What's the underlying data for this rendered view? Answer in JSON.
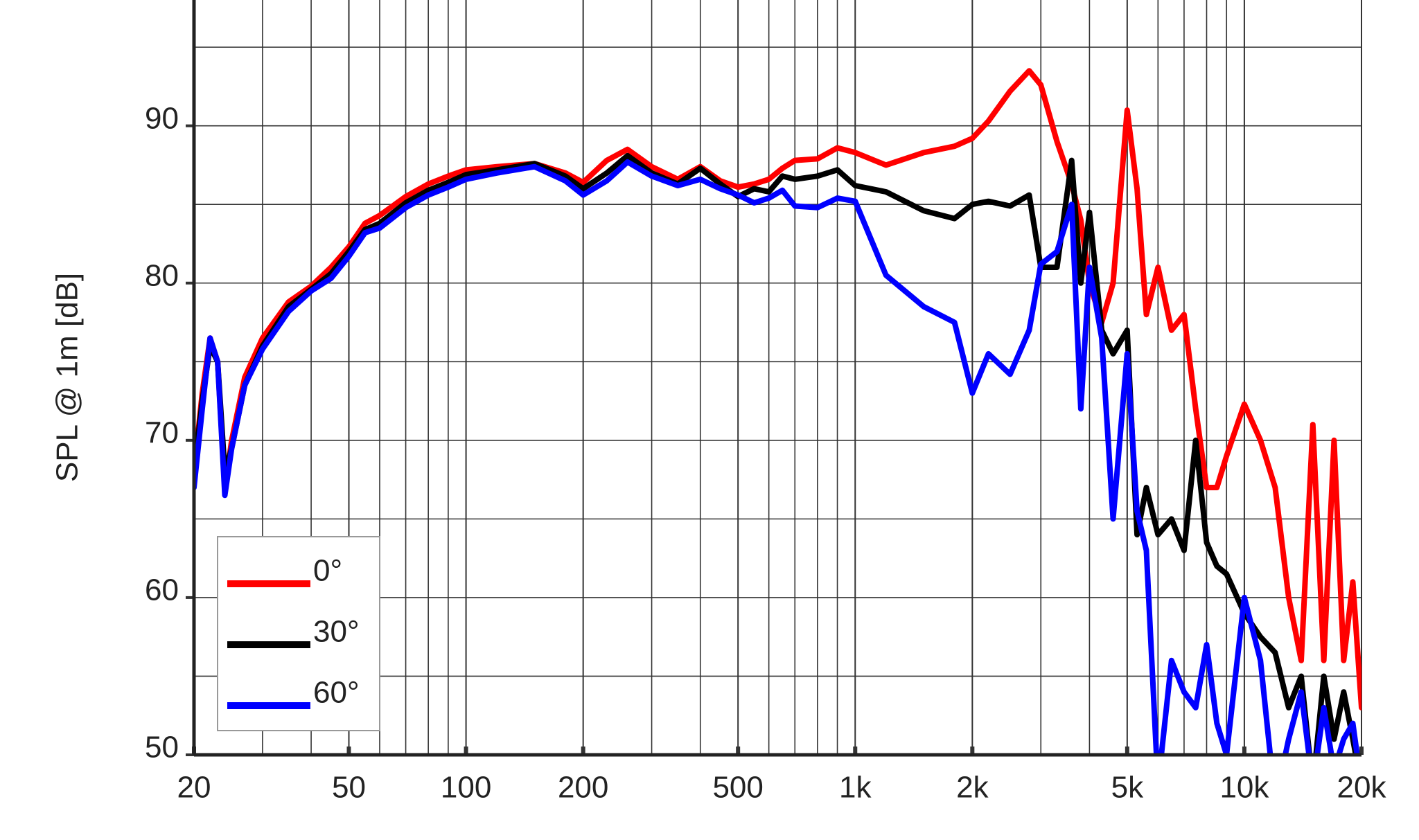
{
  "chart_data": {
    "type": "line",
    "y_label": "SPL @ 1m [dB]",
    "log_x": true,
    "grid": true,
    "legend": "lower left",
    "xlim": [
      20,
      20000
    ],
    "ylim": [
      50,
      98
    ],
    "xticks": [
      20,
      50,
      100,
      200,
      500,
      {
        "value": 1000,
        "label": "1k"
      },
      {
        "value": 2000,
        "label": "2k"
      },
      {
        "value": 5000,
        "label": "5k"
      },
      {
        "value": 10000,
        "label": "10k"
      },
      {
        "value": 20000,
        "label": "20k"
      }
    ],
    "xticks_minor": [
      30,
      40,
      60,
      70,
      80,
      90,
      300,
      400,
      600,
      700,
      800,
      900,
      3000,
      4000,
      6000,
      7000,
      8000,
      9000
    ],
    "yticks": [
      50,
      60,
      70,
      80,
      90
    ],
    "yticks_minor": [
      55,
      65,
      75,
      85,
      95
    ],
    "x": [
      20,
      21,
      22,
      23,
      24,
      25,
      27,
      30,
      35,
      40,
      45,
      50,
      55,
      60,
      70,
      80,
      90,
      100,
      120,
      150,
      180,
      200,
      230,
      260,
      300,
      350,
      400,
      450,
      500,
      550,
      600,
      650,
      700,
      800,
      900,
      1000,
      1200,
      1500,
      1800,
      2000,
      2200,
      2500,
      2800,
      3000,
      3300,
      3600,
      3800,
      4000,
      4300,
      4600,
      5000,
      5300,
      5600,
      6000,
      6500,
      7000,
      7500,
      8000,
      8500,
      9000,
      10000,
      11000,
      12000,
      13000,
      14000,
      15000,
      16000,
      17000,
      18000,
      19000,
      20000
    ],
    "series": [
      {
        "name": "0°",
        "color": "#ff0000",
        "values": [
          68,
          73,
          76.5,
          75,
          67,
          70,
          74,
          76.5,
          78.8,
          79.8,
          81,
          82.3,
          83.8,
          84.3,
          85.5,
          86.3,
          86.8,
          87.2,
          87.4,
          87.6,
          87.0,
          86.4,
          87.8,
          88.5,
          87.4,
          86.6,
          87.4,
          86.5,
          86.1,
          86.3,
          86.6,
          87.3,
          87.8,
          87.9,
          88.6,
          88.3,
          87.5,
          88.3,
          88.7,
          89.2,
          90.3,
          92.2,
          93.5,
          92.6,
          89,
          86.3,
          84,
          80,
          77.5,
          80,
          91,
          86,
          78,
          81,
          77,
          78,
          72,
          67,
          67,
          69,
          72.3,
          70,
          67,
          60,
          56,
          71,
          56,
          70,
          56,
          61,
          53
        ]
      },
      {
        "name": "30°",
        "color": "#000000",
        "values": [
          68,
          72.5,
          76,
          75,
          68,
          69.5,
          73.5,
          76,
          78.5,
          79.6,
          80.6,
          82,
          83.4,
          83.8,
          85.1,
          85.9,
          86.4,
          86.9,
          87.2,
          87.6,
          86.8,
          86.0,
          87,
          88.1,
          87,
          86.3,
          87.3,
          86.3,
          85.5,
          86,
          85.8,
          86.8,
          86.6,
          86.8,
          87.2,
          86.2,
          85.8,
          84.6,
          84.1,
          85,
          85.2,
          84.9,
          85.6,
          81,
          81,
          87.8,
          80,
          84.5,
          77,
          75.5,
          77,
          64,
          67,
          64,
          65,
          63,
          70,
          63.5,
          62,
          61.5,
          59,
          57.5,
          56.5,
          53,
          55,
          48,
          55,
          51,
          54,
          51,
          48
        ]
      },
      {
        "name": "60°",
        "color": "#0000ff",
        "values": [
          67,
          72,
          76.5,
          75,
          66.5,
          69.5,
          73.5,
          75.8,
          78.2,
          79.5,
          80.3,
          81.7,
          83.2,
          83.5,
          84.8,
          85.6,
          86.1,
          86.6,
          87,
          87.4,
          86.5,
          85.6,
          86.5,
          87.7,
          86.8,
          86.2,
          86.6,
          86,
          85.6,
          85.1,
          85.4,
          85.9,
          84.9,
          84.8,
          85.4,
          85.2,
          80.5,
          78.5,
          77.5,
          73,
          75.5,
          74.2,
          77,
          81.2,
          82,
          85,
          72,
          81,
          76.5,
          65,
          75.5,
          65.5,
          63,
          48,
          56,
          54,
          53,
          57,
          52,
          50,
          60,
          56,
          47,
          51,
          54,
          48,
          53,
          49,
          51,
          52,
          48
        ]
      }
    ]
  }
}
